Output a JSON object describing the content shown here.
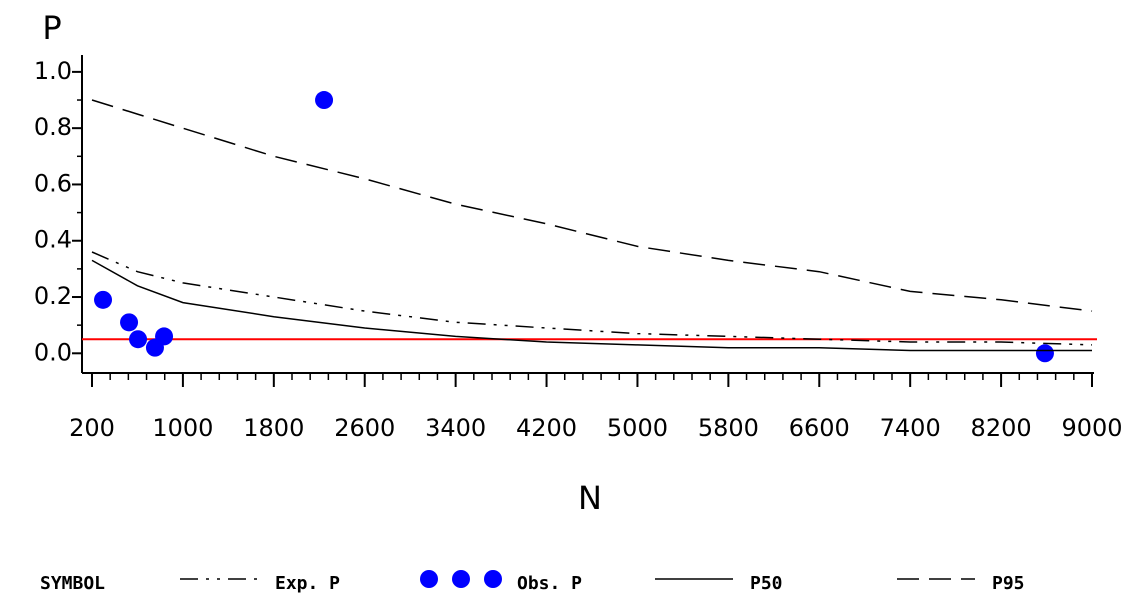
{
  "chart_data": {
    "type": "line",
    "title": "P",
    "x_label": "N",
    "legend_title": "SYMBOL",
    "xlim": [
      200,
      9000
    ],
    "xticks": [
      200,
      1000,
      1800,
      2600,
      3400,
      4200,
      5000,
      5800,
      6600,
      7400,
      8200,
      9000
    ],
    "ylim": [
      -0.07,
      1.06
    ],
    "yticks": [
      {
        "value": 0,
        "label": "0.0"
      },
      0.2,
      0.4,
      0.6,
      0.8,
      {
        "value": 1,
        "label": "1.0"
      }
    ],
    "reference_line": {
      "value": 0.05,
      "color": "#ff0000"
    },
    "series": [
      {
        "name": "Exp. P",
        "style": "dashdot",
        "color": "#000000",
        "x": [
          200,
          600,
          1000,
          1800,
          2600,
          3400,
          4200,
          5000,
          5800,
          6600,
          7400,
          8200,
          9000
        ],
        "values": [
          0.36,
          0.29,
          0.25,
          0.2,
          0.15,
          0.11,
          0.09,
          0.07,
          0.06,
          0.05,
          0.04,
          0.04,
          0.03
        ]
      },
      {
        "name": "Obs. P",
        "style": "marker",
        "color": "#0000ff",
        "x": [
          297,
          526,
          605,
          754,
          834,
          2242,
          8586
        ],
        "values": [
          0.19,
          0.11,
          0.05,
          0.02,
          0.06,
          0.9,
          0.0
        ]
      },
      {
        "name": "P50",
        "style": "solid",
        "color": "#000000",
        "x": [
          200,
          600,
          1000,
          1800,
          2600,
          3400,
          4200,
          5000,
          5800,
          6600,
          7400,
          8200,
          9000
        ],
        "values": [
          0.33,
          0.24,
          0.18,
          0.13,
          0.09,
          0.06,
          0.04,
          0.03,
          0.02,
          0.02,
          0.01,
          0.01,
          0.01
        ]
      },
      {
        "name": "P95",
        "style": "dashed",
        "color": "#000000",
        "x": [
          200,
          600,
          1000,
          1800,
          2600,
          3400,
          4200,
          5000,
          5800,
          6600,
          7400,
          8200,
          9000
        ],
        "values": [
          0.9,
          0.85,
          0.8,
          0.7,
          0.62,
          0.53,
          0.46,
          0.38,
          0.33,
          0.29,
          0.22,
          0.19,
          0.15
        ]
      }
    ]
  }
}
